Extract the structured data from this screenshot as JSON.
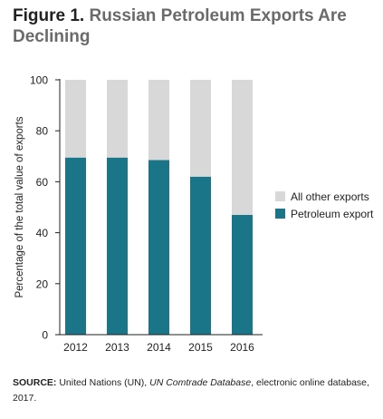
{
  "figure": {
    "label": "Figure 1",
    "separator": ". ",
    "title": "Russian Petroleum Exports Are Declining"
  },
  "source": {
    "label": "SOURCE:",
    "text_before": " United Nations (UN), ",
    "text_italic": "UN Comtrade Database",
    "text_after": ", electronic online database, 2017."
  },
  "colors": {
    "petroleum": "#1b7589",
    "other": "#d8d8d8",
    "axis": "#222222",
    "tick_text": "#222222"
  },
  "chart_data": {
    "type": "bar",
    "stacked": true,
    "categories": [
      "2012",
      "2013",
      "2014",
      "2015",
      "2016"
    ],
    "series": [
      {
        "name": "Petroleum export",
        "values": [
          69.5,
          69.5,
          68.5,
          62,
          47
        ]
      },
      {
        "name": "All other exports",
        "values": [
          30.5,
          30.5,
          31.5,
          38,
          53
        ]
      }
    ],
    "ylabel": "Percentage of the total value of exports",
    "xlabel": "",
    "ylim": [
      0,
      100
    ],
    "yticks": [
      0,
      20,
      40,
      60,
      80,
      100
    ],
    "grid": false,
    "legend_position": "right",
    "legend_order": [
      "All other exports",
      "Petroleum export"
    ]
  }
}
